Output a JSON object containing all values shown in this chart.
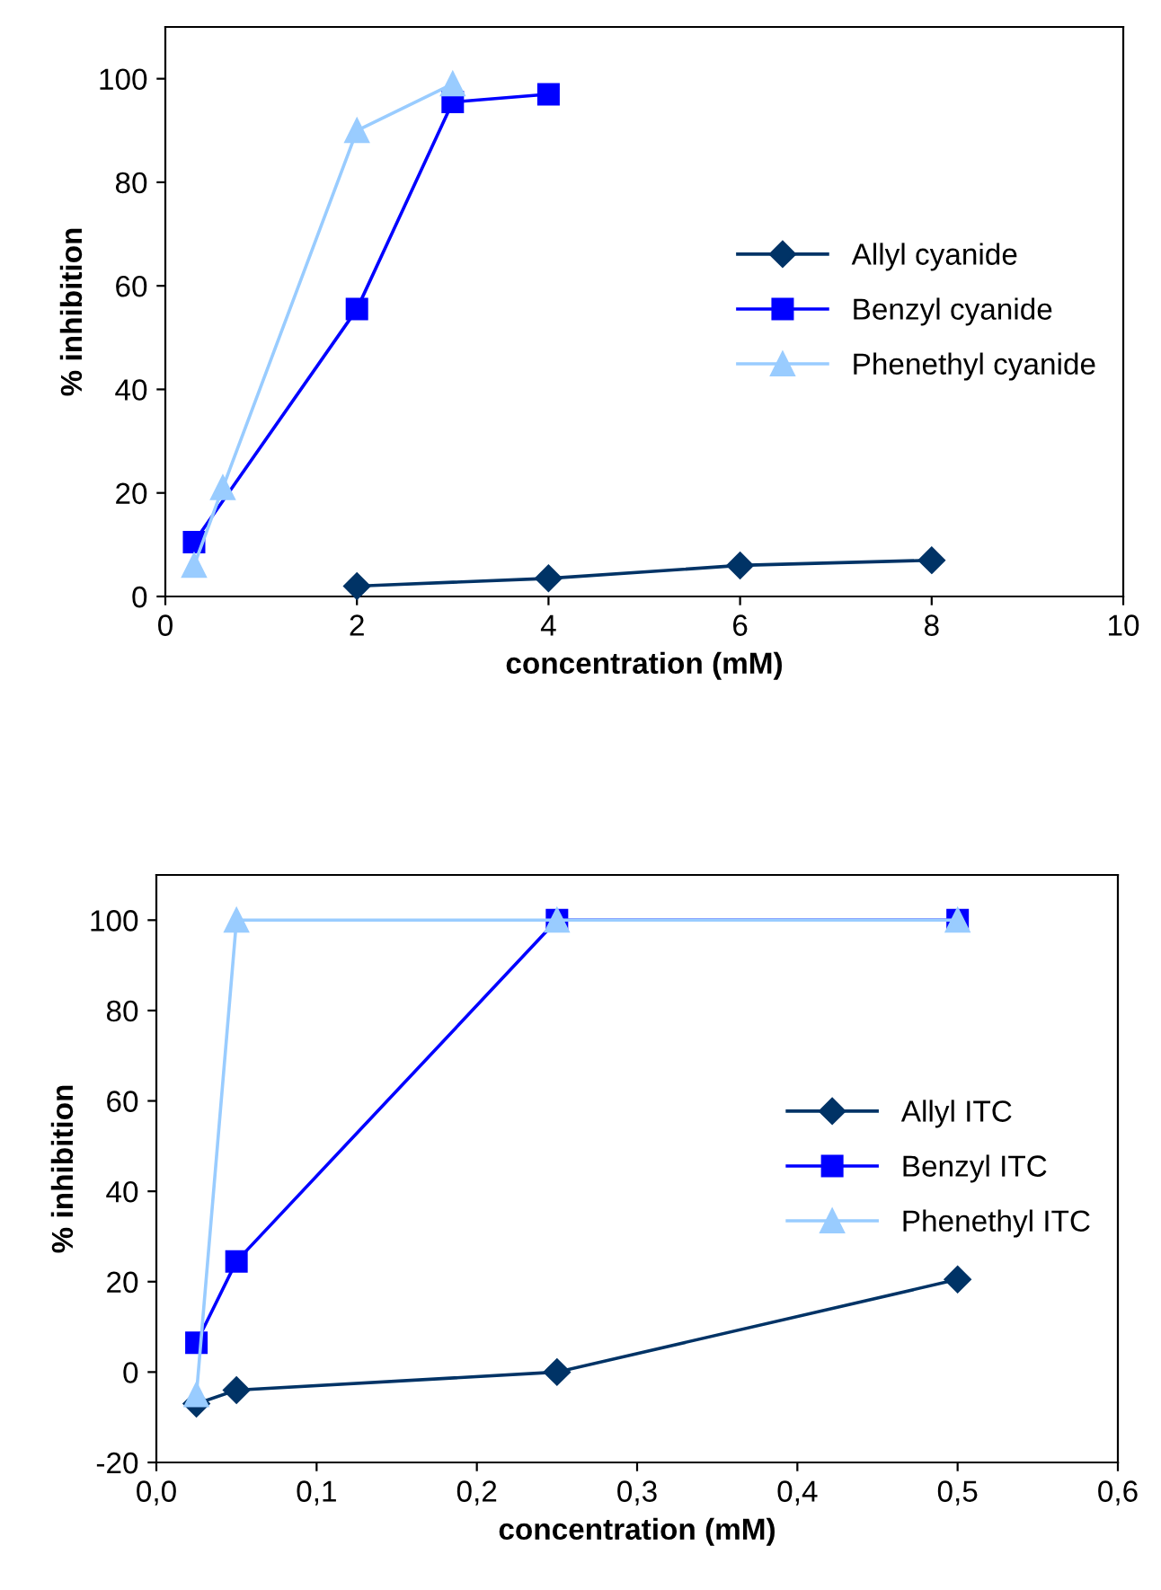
{
  "chart_data": [
    {
      "type": "line",
      "xlabel": "concentration (mM)",
      "ylabel": "% inhibition",
      "xlim": [
        0,
        10
      ],
      "xticks": [
        0,
        2,
        4,
        6,
        8,
        10
      ],
      "ylim": [
        0,
        110
      ],
      "yticks": [
        0,
        20,
        40,
        60,
        80,
        100
      ],
      "legend": "right",
      "grid": false,
      "series": [
        {
          "name": "Allyl cyanide",
          "color": "#003366",
          "marker": "diamond",
          "x": [
            2,
            4,
            6,
            8
          ],
          "values": [
            2,
            3.5,
            6,
            7
          ]
        },
        {
          "name": "Benzyl cyanide",
          "color": "#0000ff",
          "marker": "square",
          "x": [
            0.3,
            2,
            3,
            4
          ],
          "values": [
            10.5,
            55.5,
            95.5,
            97
          ]
        },
        {
          "name": "Phenethyl cyanide",
          "color": "#99ccff",
          "marker": "triangle",
          "x": [
            0.3,
            0.6,
            2,
            3
          ],
          "values": [
            6,
            21,
            90,
            99
          ]
        }
      ]
    },
    {
      "type": "line",
      "xlabel": "concentration (mM)",
      "ylabel": "% inhibition",
      "xlim": [
        0,
        0.6
      ],
      "xticks": [
        {
          "value": 0,
          "label": "0,0"
        },
        {
          "value": 0.1,
          "label": "0,1"
        },
        {
          "value": 0.2,
          "label": "0,2"
        },
        {
          "value": 0.3,
          "label": "0,3"
        },
        {
          "value": 0.4,
          "label": "0,4"
        },
        {
          "value": 0.5,
          "label": "0,5"
        },
        {
          "value": 0.6,
          "label": "0,6"
        }
      ],
      "ylim": [
        -20,
        110
      ],
      "yticks": [
        -20,
        0,
        20,
        40,
        60,
        80,
        100
      ],
      "legend": "right",
      "grid": false,
      "series": [
        {
          "name": "Allyl ITC",
          "color": "#003366",
          "marker": "diamond",
          "x": [
            0.025,
            0.05,
            0.25,
            0.5
          ],
          "values": [
            -7,
            -4,
            0,
            20.5
          ]
        },
        {
          "name": "Benzyl ITC",
          "color": "#0000ff",
          "marker": "square",
          "x": [
            0.025,
            0.05,
            0.25,
            0.5
          ],
          "values": [
            6.5,
            24.5,
            100,
            100
          ]
        },
        {
          "name": "Phenethyl ITC",
          "color": "#99ccff",
          "marker": "triangle",
          "x": [
            0.025,
            0.05,
            0.25,
            0.5
          ],
          "values": [
            -5,
            100,
            100,
            100
          ]
        }
      ]
    }
  ]
}
